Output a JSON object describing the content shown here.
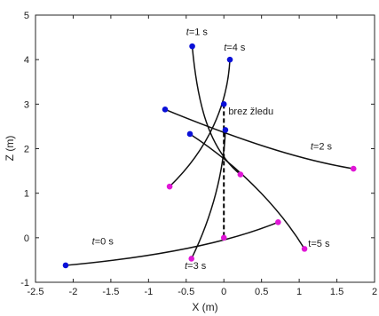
{
  "chart_data": {
    "type": "line",
    "xlabel": "X (m)",
    "ylabel": "Z (m)",
    "xlim": [
      -2.5,
      2
    ],
    "ylim": [
      -1,
      5
    ],
    "xticks": [
      -2.5,
      -2,
      -1.5,
      -1,
      -0.5,
      0,
      0.5,
      1,
      1.5,
      2
    ],
    "xtick_labels": [
      "-2.5",
      "-2",
      "-1.5",
      "-1",
      "-0.5",
      "0",
      "0.5",
      "1",
      "1.5",
      "2"
    ],
    "yticks": [
      -1,
      0,
      1,
      2,
      3,
      4,
      5
    ],
    "ytick_labels": [
      "-1",
      "0",
      "1",
      "2",
      "3",
      "4",
      "5"
    ],
    "grid": false,
    "colors": {
      "line": "#111111",
      "start_point": "#0a10d8",
      "end_point": "#e016d6",
      "dashed": "#000000"
    },
    "series": [
      {
        "x": [
          -2.1,
          -1.0,
          0.0,
          0.72
        ],
        "z": [
          -0.62,
          -0.45,
          -0.15,
          0.35
        ]
      },
      {
        "x": [
          -0.42,
          -0.35,
          -0.2,
          0.22
        ],
        "z": [
          4.3,
          3.0,
          2.0,
          1.42
        ]
      },
      {
        "x": [
          -0.78,
          0.2,
          1.0,
          1.72
        ],
        "z": [
          2.88,
          2.2,
          1.75,
          1.55
        ]
      },
      {
        "x": [
          0.02,
          0.0,
          -0.15,
          -0.43
        ],
        "z": [
          2.42,
          1.5,
          0.5,
          -0.47
        ]
      },
      {
        "x": [
          0.08,
          0.05,
          -0.2,
          -0.72
        ],
        "z": [
          4.0,
          3.0,
          2.0,
          1.15
        ]
      },
      {
        "x": [
          -0.45,
          0.3,
          0.8,
          1.07
        ],
        "z": [
          2.33,
          1.5,
          0.5,
          -0.25
        ]
      }
    ],
    "static_line": {
      "x": [
        0.0,
        0.0
      ],
      "z": [
        3.0,
        0.0
      ]
    },
    "annotations": [
      {
        "prefix": "t",
        "suffix": "=0 s",
        "x": -1.75,
        "z": -0.15
      },
      {
        "prefix": "t",
        "suffix": "=1 s",
        "x": -0.5,
        "z": 4.55
      },
      {
        "prefix": "t",
        "suffix": "=2 s",
        "x": 1.15,
        "z": 1.98
      },
      {
        "prefix": "t",
        "suffix": "=3 s",
        "x": -0.52,
        "z": -0.7
      },
      {
        "prefix": "t",
        "suffix": "=4 s",
        "x": 0.0,
        "z": 4.2
      },
      {
        "prefix": "",
        "suffix": "t=5 s",
        "x": 1.12,
        "z": -0.2
      },
      {
        "prefix": "",
        "suffix": "brez žledu",
        "x": 0.06,
        "z": 2.77
      }
    ]
  }
}
